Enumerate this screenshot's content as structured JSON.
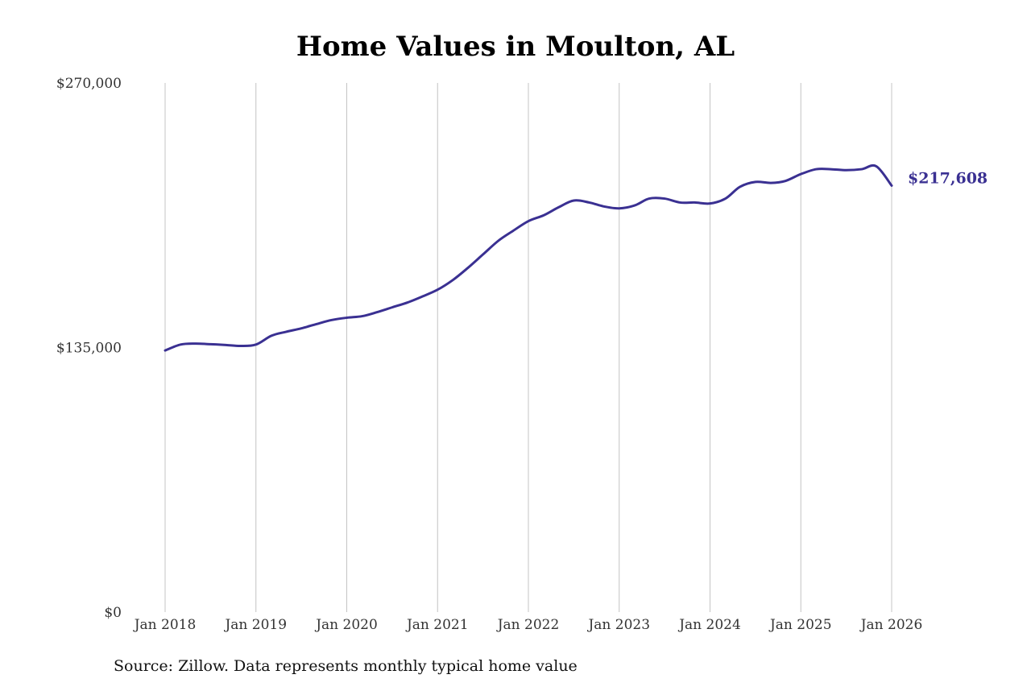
{
  "chart_data": {
    "type": "line",
    "title": "Home Values in Moulton, AL",
    "xlabel": "",
    "ylabel": "",
    "ylim": [
      0,
      270000
    ],
    "y_ticks": [
      {
        "value": 0,
        "label": "$0"
      },
      {
        "value": 135000,
        "label": "$135,000"
      },
      {
        "value": 270000,
        "label": "$270,000"
      }
    ],
    "x_ticks": [
      {
        "value": 2018,
        "label": "Jan 2018"
      },
      {
        "value": 2019,
        "label": "Jan 2019"
      },
      {
        "value": 2020,
        "label": "Jan 2020"
      },
      {
        "value": 2021,
        "label": "Jan 2021"
      },
      {
        "value": 2022,
        "label": "Jan 2022"
      },
      {
        "value": 2023,
        "label": "Jan 2023"
      },
      {
        "value": 2024,
        "label": "Jan 2024"
      },
      {
        "value": 2025,
        "label": "Jan 2025"
      },
      {
        "value": 2026,
        "label": "Jan 2026"
      }
    ],
    "grid": "vertical",
    "line_color": "#3a3092",
    "end_label": "$217,608",
    "series": [
      {
        "name": "",
        "points": [
          [
            2018.0,
            133500
          ],
          [
            2018.17,
            136500
          ],
          [
            2018.33,
            137000
          ],
          [
            2018.5,
            136700
          ],
          [
            2018.67,
            136300
          ],
          [
            2018.83,
            135800
          ],
          [
            2019.0,
            136500
          ],
          [
            2019.17,
            141000
          ],
          [
            2019.33,
            143000
          ],
          [
            2019.5,
            144800
          ],
          [
            2019.67,
            147000
          ],
          [
            2019.83,
            149000
          ],
          [
            2020.0,
            150200
          ],
          [
            2020.17,
            151000
          ],
          [
            2020.33,
            153000
          ],
          [
            2020.5,
            155500
          ],
          [
            2020.67,
            158000
          ],
          [
            2020.83,
            161000
          ],
          [
            2021.0,
            164500
          ],
          [
            2021.17,
            169500
          ],
          [
            2021.33,
            175500
          ],
          [
            2021.5,
            182500
          ],
          [
            2021.67,
            189500
          ],
          [
            2021.83,
            194500
          ],
          [
            2022.0,
            199500
          ],
          [
            2022.17,
            202500
          ],
          [
            2022.33,
            206500
          ],
          [
            2022.5,
            210000
          ],
          [
            2022.67,
            209000
          ],
          [
            2022.83,
            207000
          ],
          [
            2023.0,
            206000
          ],
          [
            2023.17,
            207500
          ],
          [
            2023.33,
            211000
          ],
          [
            2023.5,
            211000
          ],
          [
            2023.67,
            209000
          ],
          [
            2023.83,
            209000
          ],
          [
            2024.0,
            208500
          ],
          [
            2024.17,
            211000
          ],
          [
            2024.33,
            217000
          ],
          [
            2024.5,
            219500
          ],
          [
            2024.67,
            219000
          ],
          [
            2024.83,
            220000
          ],
          [
            2025.0,
            223500
          ],
          [
            2025.17,
            226000
          ],
          [
            2025.33,
            226000
          ],
          [
            2025.5,
            225500
          ],
          [
            2025.67,
            226000
          ],
          [
            2025.83,
            227500
          ],
          [
            2026.0,
            217608
          ]
        ]
      }
    ]
  },
  "source_note": "Source: Zillow. Data represents monthly typical home value"
}
